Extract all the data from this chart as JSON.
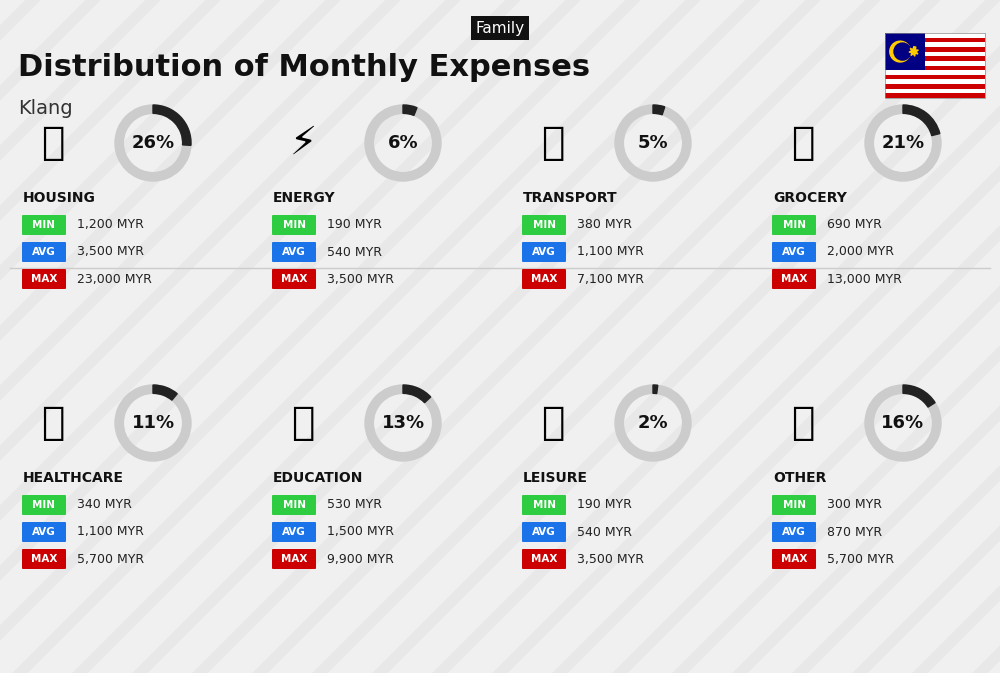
{
  "title": "Distribution of Monthly Expenses",
  "subtitle": "Klang",
  "family_label": "Family",
  "bg_color": "#f0f0f0",
  "categories": [
    {
      "name": "HOUSING",
      "pct": 26,
      "min_val": "1,200 MYR",
      "avg_val": "3,500 MYR",
      "max_val": "23,000 MYR",
      "emoji": "🏗",
      "row": 0,
      "col": 0
    },
    {
      "name": "ENERGY",
      "pct": 6,
      "min_val": "190 MYR",
      "avg_val": "540 MYR",
      "max_val": "3,500 MYR",
      "emoji": "⚡",
      "row": 0,
      "col": 1
    },
    {
      "name": "TRANSPORT",
      "pct": 5,
      "min_val": "380 MYR",
      "avg_val": "1,100 MYR",
      "max_val": "7,100 MYR",
      "emoji": "🚌",
      "row": 0,
      "col": 2
    },
    {
      "name": "GROCERY",
      "pct": 21,
      "min_val": "690 MYR",
      "avg_val": "2,000 MYR",
      "max_val": "13,000 MYR",
      "emoji": "🛒",
      "row": 0,
      "col": 3
    },
    {
      "name": "HEALTHCARE",
      "pct": 11,
      "min_val": "340 MYR",
      "avg_val": "1,100 MYR",
      "max_val": "5,700 MYR",
      "emoji": "🏥",
      "row": 1,
      "col": 0
    },
    {
      "name": "EDUCATION",
      "pct": 13,
      "min_val": "530 MYR",
      "avg_val": "1,500 MYR",
      "max_val": "9,900 MYR",
      "emoji": "🎓",
      "row": 1,
      "col": 1
    },
    {
      "name": "LEISURE",
      "pct": 2,
      "min_val": "190 MYR",
      "avg_val": "540 MYR",
      "max_val": "3,500 MYR",
      "emoji": "🛍",
      "row": 1,
      "col": 2
    },
    {
      "name": "OTHER",
      "pct": 16,
      "min_val": "300 MYR",
      "avg_val": "870 MYR",
      "max_val": "5,700 MYR",
      "emoji": "👜",
      "row": 1,
      "col": 3
    }
  ],
  "min_color": "#2ecc40",
  "avg_color": "#1a73e8",
  "max_color": "#cc0000",
  "donut_fill": "#222222",
  "donut_bg": "#cccccc",
  "label_color": "#ffffff",
  "category_color": "#111111",
  "value_color": "#222222"
}
